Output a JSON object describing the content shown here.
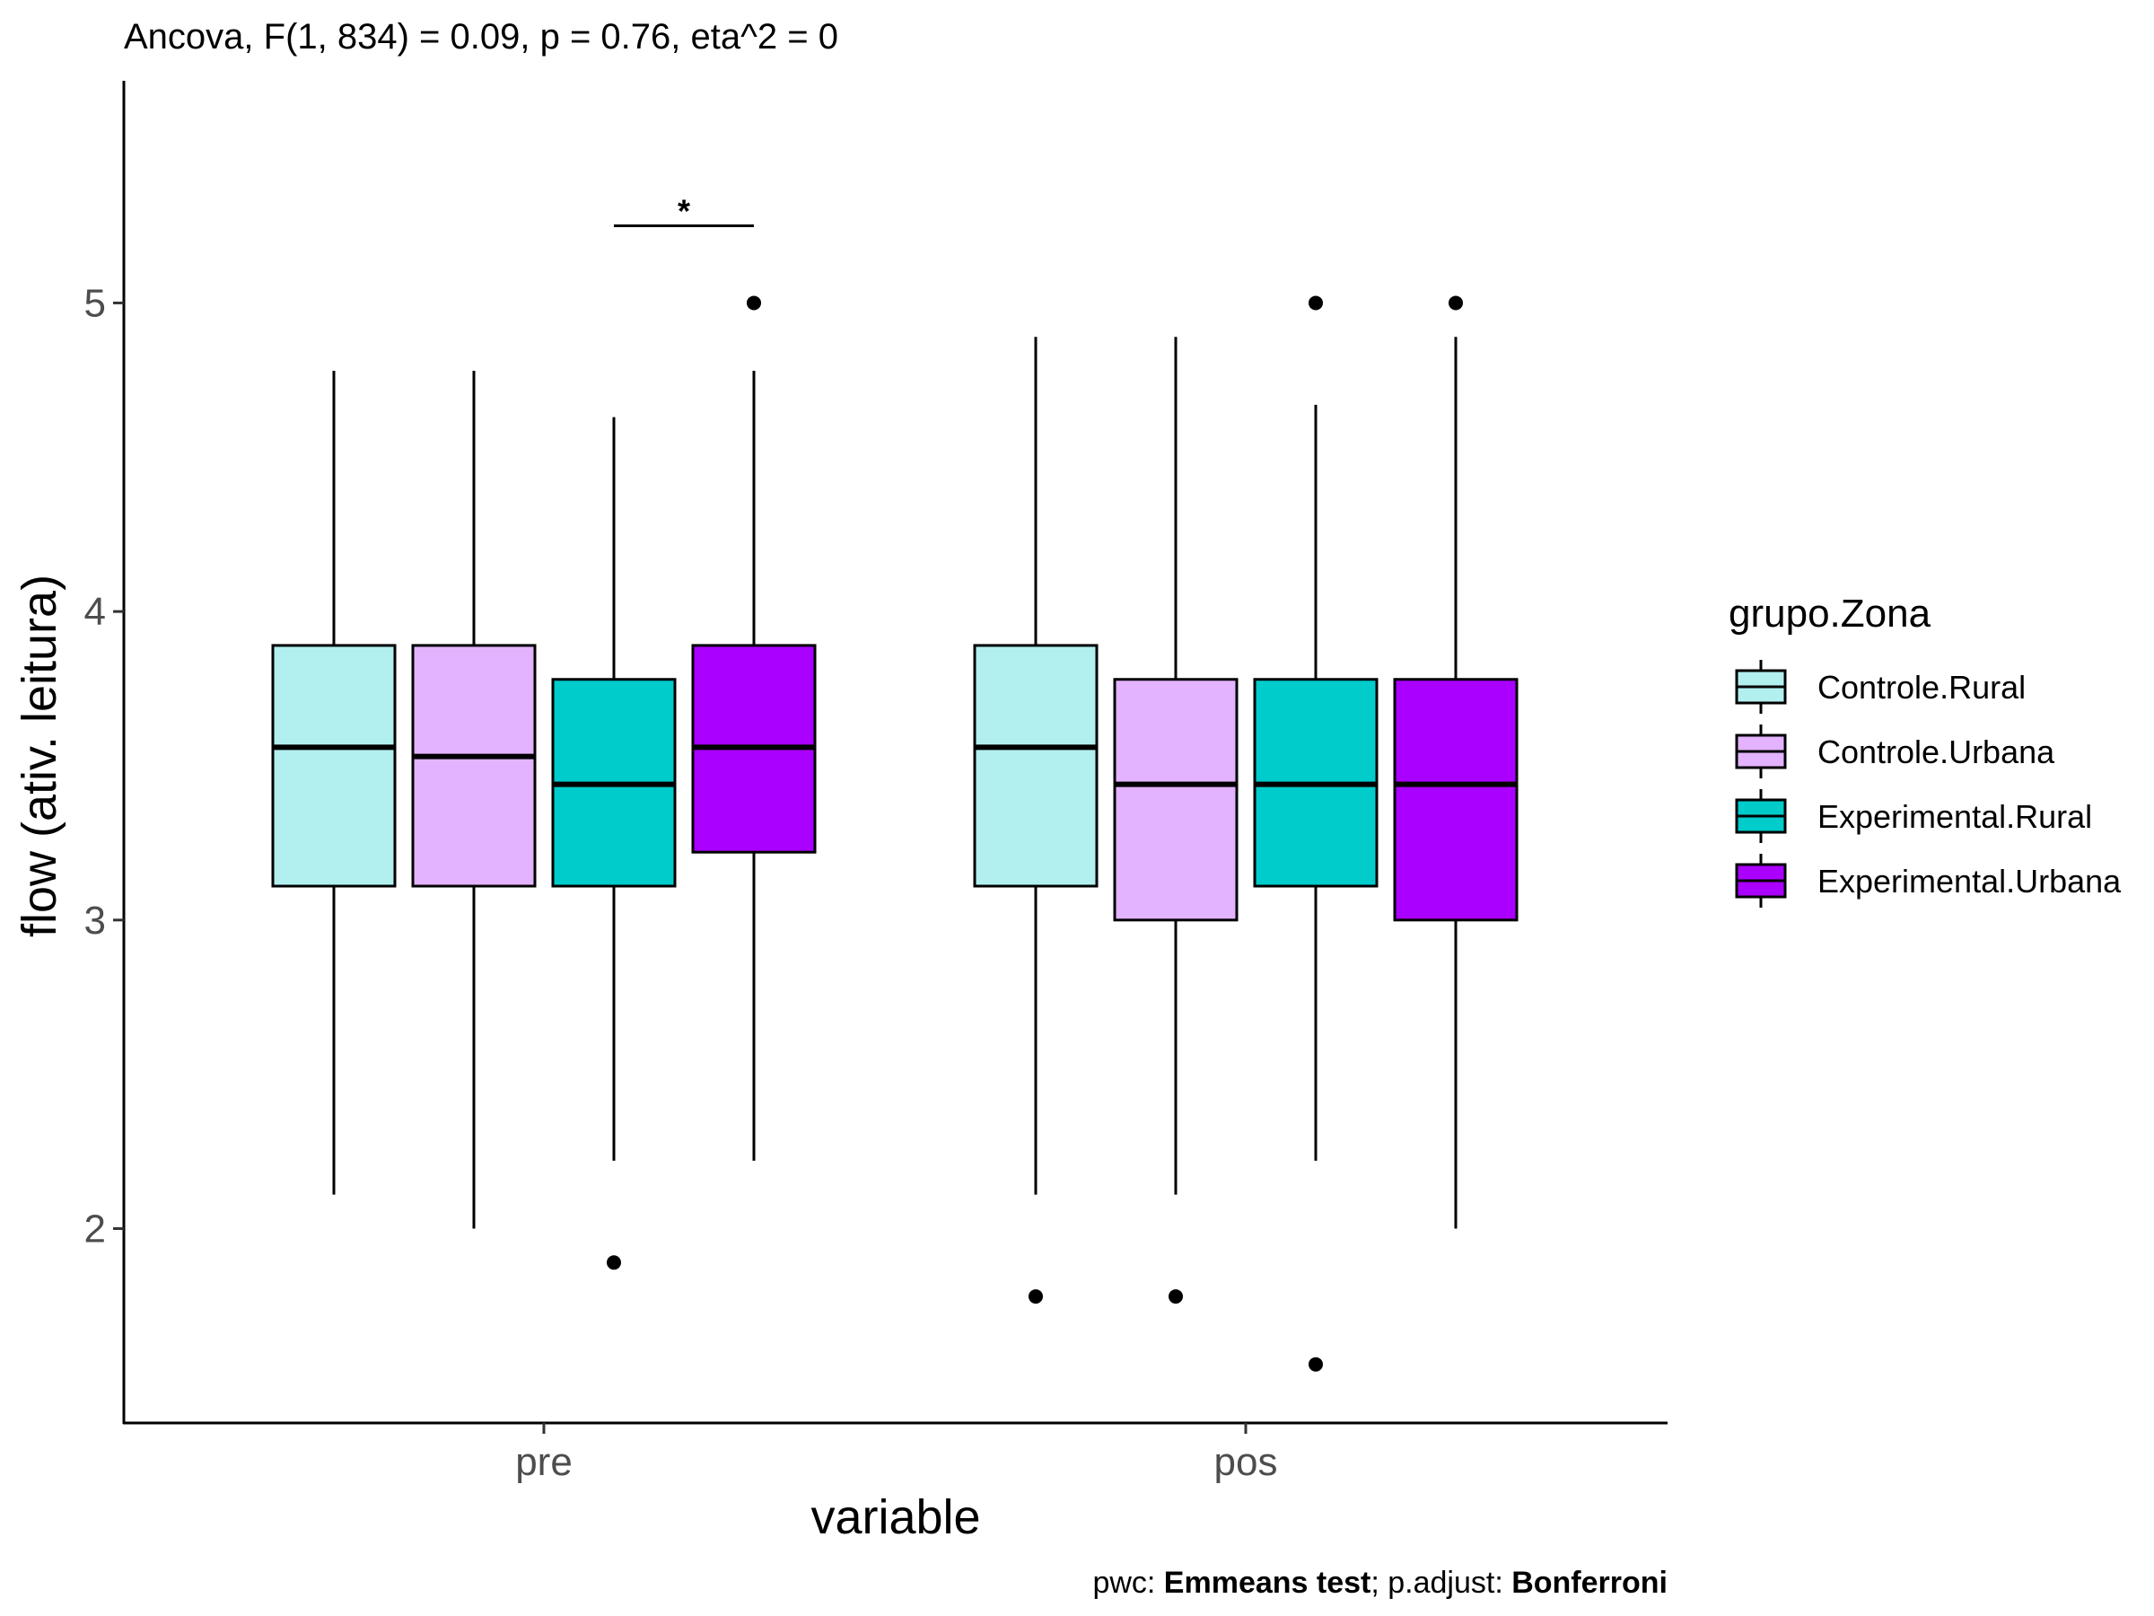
{
  "chart_data": {
    "type": "box",
    "title": "Ancova, F(1, 834) = 0.09, p = 0.76, eta^2 = 0",
    "xlabel": "variable",
    "ylabel": "flow (ativ. leitura)",
    "ylim": [
      1.37,
      5.72
    ],
    "yticks": [
      2,
      3,
      4,
      5
    ],
    "categories": [
      "pre",
      "pos"
    ],
    "legend": {
      "title": "grupo.Zona",
      "position": "right"
    },
    "series": [
      {
        "name": "Controle.Rural",
        "color": "#b2efef",
        "values": [
          {
            "category": "pre",
            "whisker_low": 2.11,
            "q1": 3.11,
            "median": 3.56,
            "q3": 3.89,
            "whisker_high": 4.78,
            "outliers": []
          },
          {
            "category": "pos",
            "whisker_low": 2.11,
            "q1": 3.11,
            "median": 3.56,
            "q3": 3.89,
            "whisker_high": 4.89,
            "outliers": [
              1.78
            ]
          }
        ]
      },
      {
        "name": "Controle.Urbana",
        "color": "#e3b3ff",
        "values": [
          {
            "category": "pre",
            "whisker_low": 2.0,
            "q1": 3.11,
            "median": 3.53,
            "q3": 3.89,
            "whisker_high": 4.78,
            "outliers": []
          },
          {
            "category": "pos",
            "whisker_low": 2.11,
            "q1": 3.0,
            "median": 3.44,
            "q3": 3.78,
            "whisker_high": 4.89,
            "outliers": [
              1.78
            ]
          }
        ]
      },
      {
        "name": "Experimental.Rural",
        "color": "#00cccc",
        "values": [
          {
            "category": "pre",
            "whisker_low": 2.22,
            "q1": 3.11,
            "median": 3.44,
            "q3": 3.78,
            "whisker_high": 4.63,
            "outliers": [
              1.89
            ]
          },
          {
            "category": "pos",
            "whisker_low": 2.22,
            "q1": 3.11,
            "median": 3.44,
            "q3": 3.78,
            "whisker_high": 4.67,
            "outliers": [
              5.0,
              1.56
            ]
          }
        ]
      },
      {
        "name": "Experimental.Urbana",
        "color": "#aa00ff",
        "values": [
          {
            "category": "pre",
            "whisker_low": 2.22,
            "q1": 3.22,
            "median": 3.56,
            "q3": 3.89,
            "whisker_high": 4.78,
            "outliers": [
              5.0
            ]
          },
          {
            "category": "pos",
            "whisker_low": 2.0,
            "q1": 3.0,
            "median": 3.44,
            "q3": 3.78,
            "whisker_high": 4.89,
            "outliers": [
              5.0
            ]
          }
        ]
      }
    ],
    "significance": [
      {
        "category": "pre",
        "from_series": 2,
        "to_series": 3,
        "y": 5.25,
        "label": "*"
      }
    ],
    "caption": {
      "prefix": "pwc: ",
      "method": "Emmeans test",
      "middle": "; p.adjust: ",
      "adjust": "Bonferroni"
    },
    "grid": false
  }
}
